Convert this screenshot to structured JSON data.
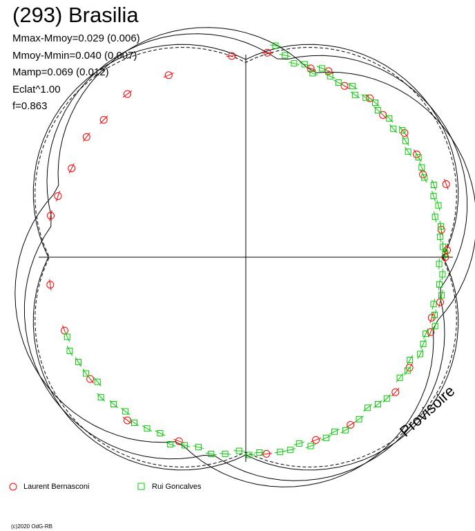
{
  "chart_data": {
    "type": "scatter",
    "title": "(293) Brasilia",
    "stats": [
      "Mmax-Mmoy=0.029 (0.006)",
      "Mmoy-Mmin=0.040 (0.007)",
      "Mamp=0.069 (0.012)",
      "Eclat^1.00",
      "f=0.863"
    ],
    "watermark": "Provisoire",
    "copyright": "(c)2020 OdG-RB",
    "colors": {
      "series_1": "#ff0000",
      "series_2": "#00cc00",
      "axes": "#000000"
    },
    "fit_curves": [
      {
        "style": "solid",
        "rx": 1.035,
        "ry": 1.0,
        "phase_deg": 20
      },
      {
        "style": "solid",
        "rx": 1.0,
        "ry": 1.035,
        "phase_deg": 10
      },
      {
        "style": "solid",
        "rx": 1.02,
        "ry": 1.02,
        "phase_deg": 0
      },
      {
        "style": "dashed",
        "rx": 1.01,
        "ry": 0.99,
        "phase_deg": 0
      }
    ],
    "series": [
      {
        "name": "Laurent Bernasconi",
        "marker": "circle",
        "angle_deg": [
          94,
          84,
          71,
          66,
          60,
          52,
          46,
          38,
          31,
          25,
          20,
          8,
          2,
          0,
          -13,
          -18,
          -22,
          -34,
          -42,
          -58,
          -69,
          -84,
          -110,
          -126,
          -142,
          -158,
          -172,
          113,
          126,
          136,
          143,
          153,
          162,
          168
        ],
        "radius": [
          1.02,
          1.04,
          1.01,
          1.03,
          1.0,
          1.02,
          1.0,
          1.02,
          1.01,
          0.99,
          1.08,
          1.0,
          1.02,
          1.01,
          1.01,
          0.99,
          1.01,
          1.0,
          1.02,
          1.0,
          0.99,
          1.0,
          0.99,
          1.02,
          1.0,
          0.99,
          1.0,
          1.0,
          1.02,
          1.0,
          1.01,
          0.99,
          1.0,
          1.01
        ]
      },
      {
        "name": "Rui Goncalves",
        "marker": "square",
        "angle_deg": [
          82,
          79,
          76,
          73,
          70,
          68,
          65,
          62,
          58,
          56,
          53,
          50,
          48,
          44,
          41,
          39,
          36,
          33,
          30,
          27,
          24,
          21,
          18,
          15,
          12,
          9,
          6,
          3,
          1,
          -2,
          -5,
          -8,
          -11,
          -14,
          -17,
          -20,
          -23,
          -26,
          -29,
          -32,
          -35,
          -38,
          -45,
          -48,
          -51,
          -55,
          -60,
          -63,
          -66,
          -71,
          -74,
          -77,
          -80,
          -86,
          -89,
          -92,
          -96,
          -100,
          -104,
          -108,
          -112,
          -116,
          -120,
          -124,
          -128,
          -132,
          -136,
          -140,
          -144,
          -148,
          -152,
          -156
        ],
        "radius": [
          1.08,
          1.04,
          1.01,
          1.02,
          0.99,
          1.03,
          1.01,
          1.0,
          1.02,
          0.99,
          1.01,
          1.02,
          1.0,
          1.01,
          0.99,
          1.02,
          1.0,
          0.98,
          1.01,
          1.0,
          0.99,
          1.02,
          1.0,
          1.01,
          0.98,
          1.0,
          0.99,
          1.0,
          1.01,
          0.98,
          1.0,
          0.99,
          1.01,
          0.98,
          1.0,
          1.02,
          0.99,
          1.0,
          1.01,
          0.98,
          1.0,
          0.99,
          1.01,
          1.0,
          0.98,
          1.0,
          1.01,
          0.99,
          1.0,
          1.01,
          0.98,
          1.0,
          1.0,
          0.99,
          1.0,
          0.98,
          1.0,
          1.01,
          0.99,
          1.0,
          1.02,
          0.99,
          1.0,
          1.01,
          0.99,
          1.0,
          1.02,
          0.98,
          1.0,
          1.0,
          1.01,
          0.99
        ]
      }
    ]
  }
}
